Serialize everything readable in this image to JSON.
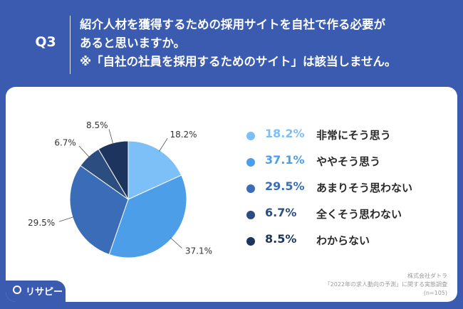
{
  "header": {
    "badge": "Q3",
    "line1": "紹介人材を獲得するための採用サイトを自社で作る必要が",
    "line2": "あると思いますか。",
    "line3": "※「自社の社員を採用するためのサイト」は該当しません。"
  },
  "chart_data": {
    "type": "pie",
    "slices": [
      {
        "label": "非常にそう思う",
        "value": 18.2,
        "value_label": "18.2%",
        "color": "#7cc0f7"
      },
      {
        "label": "ややそう思う",
        "value": 37.1,
        "value_label": "37.1%",
        "color": "#4d9ee9"
      },
      {
        "label": "あまりそう思わない",
        "value": 29.5,
        "value_label": "29.5%",
        "color": "#3a6cb8"
      },
      {
        "label": "全くそう思わない",
        "value": 6.7,
        "value_label": "6.7%",
        "color": "#2c4d80"
      },
      {
        "label": "わからない",
        "value": 8.5,
        "value_label": "8.5%",
        "color": "#1c345e"
      }
    ],
    "legend_placement": "right"
  },
  "source": {
    "line1": "株式会社ダトラ",
    "line2": "「2022年の求人動向の予測」に関する実態調査",
    "line3": "(n=105)"
  },
  "logo": {
    "text": "リサピー"
  },
  "colors": {
    "background": "#3a5bb0",
    "panel": "#ffffff"
  }
}
